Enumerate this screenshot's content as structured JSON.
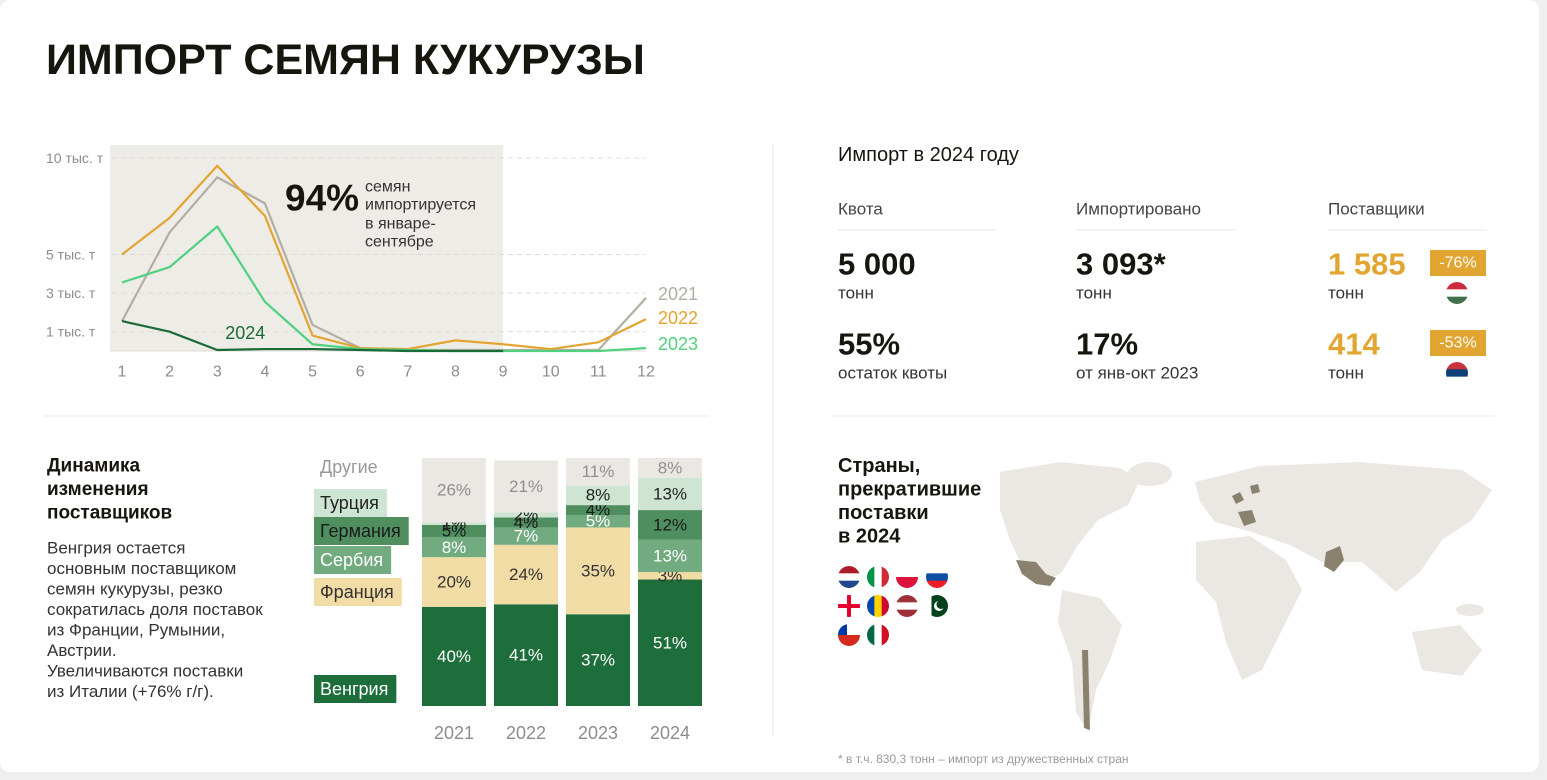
{
  "title": "ИМПОРТ СЕМЯН КУКУРУЗЫ",
  "chart_data": [
    {
      "type": "line",
      "x": [
        1,
        2,
        3,
        4,
        5,
        6,
        7,
        8,
        9,
        10,
        11,
        12
      ],
      "xlim": [
        1,
        12
      ],
      "xticks": [
        1,
        2,
        3,
        4,
        5,
        6,
        7,
        8,
        9,
        10,
        11,
        12
      ],
      "ylim": [
        0,
        10
      ],
      "yticks": [
        {
          "value": 1,
          "label": "1 тыс. т"
        },
        {
          "value": 3,
          "label": "3 тыс. т"
        },
        {
          "value": 5,
          "label": "5 тыс. т"
        },
        {
          "value": 10,
          "label": "10 тыс. т"
        }
      ],
      "grid": true,
      "highlight_x": [
        1,
        9
      ],
      "annotation": {
        "value": "94%",
        "lines": [
          "семян",
          "импортируется",
          "в январе-",
          "сентябре"
        ]
      },
      "series": [
        {
          "name": "2021",
          "color": "#b3ada2",
          "values": [
            1.55,
            6.15,
            9.0,
            7.65,
            1.35,
            0.15,
            0.05,
            0.05,
            0.05,
            0.05,
            0.05,
            2.75
          ]
        },
        {
          "name": "2022",
          "color": "#e3a531",
          "values": [
            5.0,
            6.9,
            9.6,
            7.0,
            0.8,
            0.15,
            0.1,
            0.55,
            0.35,
            0.1,
            0.45,
            1.65
          ]
        },
        {
          "name": "2023",
          "color": "#4fd17f",
          "values": [
            3.55,
            4.35,
            6.45,
            2.55,
            0.35,
            0.1,
            0.05,
            0,
            0,
            0,
            0,
            0.15
          ]
        },
        {
          "name": "2024",
          "color": "#1b6b3a",
          "values": [
            1.55,
            1.0,
            0.05,
            0.1,
            0.1,
            0.05,
            0,
            0,
            0,
            null,
            null,
            null
          ]
        }
      ]
    },
    {
      "type": "stacked_bar",
      "categories": [
        "2021",
        "2022",
        "2023",
        "2024"
      ],
      "series": [
        {
          "name": "Венгрия",
          "color": "#1d6e3b",
          "values": [
            40,
            41,
            37,
            51
          ],
          "value_labels": [
            "40%",
            "41%",
            "37%",
            "51%"
          ]
        },
        {
          "name": "Франция",
          "color": "#f2dca5",
          "values": [
            20,
            24,
            35,
            3
          ],
          "value_labels": [
            "20%",
            "24%",
            "35%",
            "3%"
          ]
        },
        {
          "name": "Сербия",
          "color": "#72ab80",
          "values": [
            8,
            7,
            5,
            13
          ],
          "value_labels": [
            "8%",
            "7%",
            "5%",
            "13%"
          ]
        },
        {
          "name": "Германия",
          "color": "#4f8f5f",
          "values": [
            5,
            4,
            4,
            12
          ],
          "value_labels": [
            "5%",
            "4%",
            "4%",
            "12%"
          ]
        },
        {
          "name": "Турция",
          "color": "#cde5d2",
          "values": [
            1,
            2,
            8,
            13
          ],
          "value_labels": [
            "1%",
            "2%",
            "8%",
            "13%"
          ]
        },
        {
          "name": "Другие",
          "color": "#ebe8e3",
          "values": [
            26,
            21,
            11,
            8
          ],
          "value_labels": [
            "26%",
            "21%",
            "11%",
            "8%"
          ]
        }
      ]
    }
  ],
  "suppliers_text": {
    "heading_lines": [
      "Динамика",
      "изменения",
      "поставщиков"
    ],
    "body_lines": [
      "Венгрия остается",
      "основным поставщиком",
      "семян кукурузы, резко",
      "сократилась доля поставок",
      "из Франции, Румынии,",
      "Австрии.",
      "Увеличиваются поставки",
      "из Италии (+76% г/г)."
    ]
  },
  "import_2024": {
    "title": "Импорт в 2024 году",
    "columns": [
      {
        "label": "Квота",
        "items": [
          {
            "value": "5 000",
            "unit": "тонн"
          },
          {
            "value": "55%",
            "unit": "остаток квоты"
          }
        ]
      },
      {
        "label": "Импортировано",
        "items": [
          {
            "value": "3 093*",
            "unit": "тонн"
          },
          {
            "value": "17%",
            "unit": "от янв-окт 2023"
          }
        ]
      },
      {
        "label": "Поставщики",
        "items": [
          {
            "value": "1 585",
            "unit": "тонн",
            "change": "-76%"
          },
          {
            "value": "414",
            "unit": "тонн",
            "change": "-53%"
          }
        ]
      }
    ]
  },
  "stopped": {
    "heading_lines": [
      "Страны,",
      "прекратившие",
      "поставки",
      "в 2024"
    ]
  },
  "footnote": "* в т.ч. 830,3 тонн – импорт из дружественных стран"
}
